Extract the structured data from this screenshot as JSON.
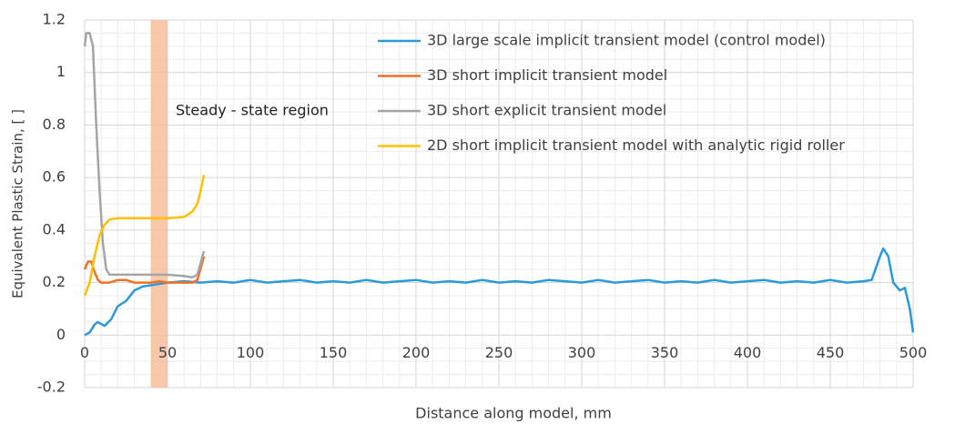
{
  "chart_data": {
    "type": "line",
    "xlabel": "Distance along model, mm",
    "ylabel": "Equivalent Plastic Strain, [ ]",
    "xlim": [
      0,
      500
    ],
    "ylim": [
      -0.2,
      1.2
    ],
    "xticks": [
      0,
      50,
      100,
      150,
      200,
      250,
      300,
      350,
      400,
      450,
      500
    ],
    "yticks": [
      -0.2,
      0,
      0.2,
      0.4,
      0.6,
      0.8,
      1,
      1.2
    ],
    "grid": true,
    "legend": "upper right",
    "highlight": {
      "xlim": [
        40,
        50
      ],
      "color": "#f8b995",
      "label": "Steady - state region"
    },
    "series": [
      {
        "name": "3D large scale implicit transient model (control model)",
        "color": "#2a9ad8",
        "x": [
          0,
          3,
          6,
          8,
          12,
          16,
          20,
          25,
          30,
          35,
          40,
          45,
          50,
          60,
          70,
          80,
          90,
          100,
          110,
          120,
          130,
          140,
          150,
          160,
          170,
          180,
          190,
          200,
          210,
          220,
          230,
          240,
          250,
          260,
          270,
          280,
          290,
          300,
          310,
          320,
          330,
          340,
          350,
          360,
          370,
          380,
          390,
          400,
          410,
          420,
          430,
          440,
          450,
          460,
          470,
          475,
          480,
          482,
          485,
          488,
          492,
          495,
          498,
          500
        ],
        "values": [
          0,
          0.01,
          0.04,
          0.05,
          0.035,
          0.06,
          0.11,
          0.13,
          0.17,
          0.185,
          0.19,
          0.195,
          0.2,
          0.205,
          0.2,
          0.205,
          0.2,
          0.21,
          0.2,
          0.205,
          0.21,
          0.2,
          0.205,
          0.2,
          0.21,
          0.2,
          0.205,
          0.21,
          0.2,
          0.205,
          0.2,
          0.21,
          0.2,
          0.205,
          0.2,
          0.21,
          0.205,
          0.2,
          0.21,
          0.2,
          0.205,
          0.21,
          0.2,
          0.205,
          0.2,
          0.21,
          0.2,
          0.205,
          0.21,
          0.2,
          0.205,
          0.2,
          0.21,
          0.2,
          0.205,
          0.21,
          0.3,
          0.33,
          0.3,
          0.2,
          0.17,
          0.18,
          0.1,
          0.01
        ]
      },
      {
        "name": "3D short implicit transient model",
        "color": "#f07024",
        "x": [
          0,
          2,
          4,
          6,
          8,
          10,
          15,
          20,
          25,
          30,
          35,
          40,
          45,
          50,
          55,
          60,
          65,
          68,
          72
        ],
        "values": [
          0.25,
          0.28,
          0.28,
          0.24,
          0.21,
          0.2,
          0.2,
          0.21,
          0.21,
          0.2,
          0.2,
          0.2,
          0.205,
          0.2,
          0.2,
          0.2,
          0.2,
          0.21,
          0.3
        ]
      },
      {
        "name": "3D short explicit transient model",
        "color": "#a5a5a5",
        "x": [
          0,
          1,
          3,
          5,
          7,
          9,
          11,
          13,
          15,
          20,
          30,
          40,
          50,
          60,
          65,
          68,
          72
        ],
        "values": [
          1.1,
          1.15,
          1.15,
          1.1,
          0.8,
          0.55,
          0.35,
          0.25,
          0.23,
          0.23,
          0.23,
          0.23,
          0.23,
          0.225,
          0.22,
          0.23,
          0.32
        ]
      },
      {
        "name": "2D short implicit transient model with analytic rigid roller",
        "color": "#ffc000",
        "x": [
          0,
          3,
          6,
          9,
          12,
          15,
          20,
          30,
          40,
          50,
          60,
          65,
          68,
          70,
          72
        ],
        "values": [
          0.15,
          0.2,
          0.3,
          0.38,
          0.42,
          0.44,
          0.445,
          0.445,
          0.445,
          0.445,
          0.45,
          0.47,
          0.5,
          0.55,
          0.61
        ]
      }
    ]
  }
}
